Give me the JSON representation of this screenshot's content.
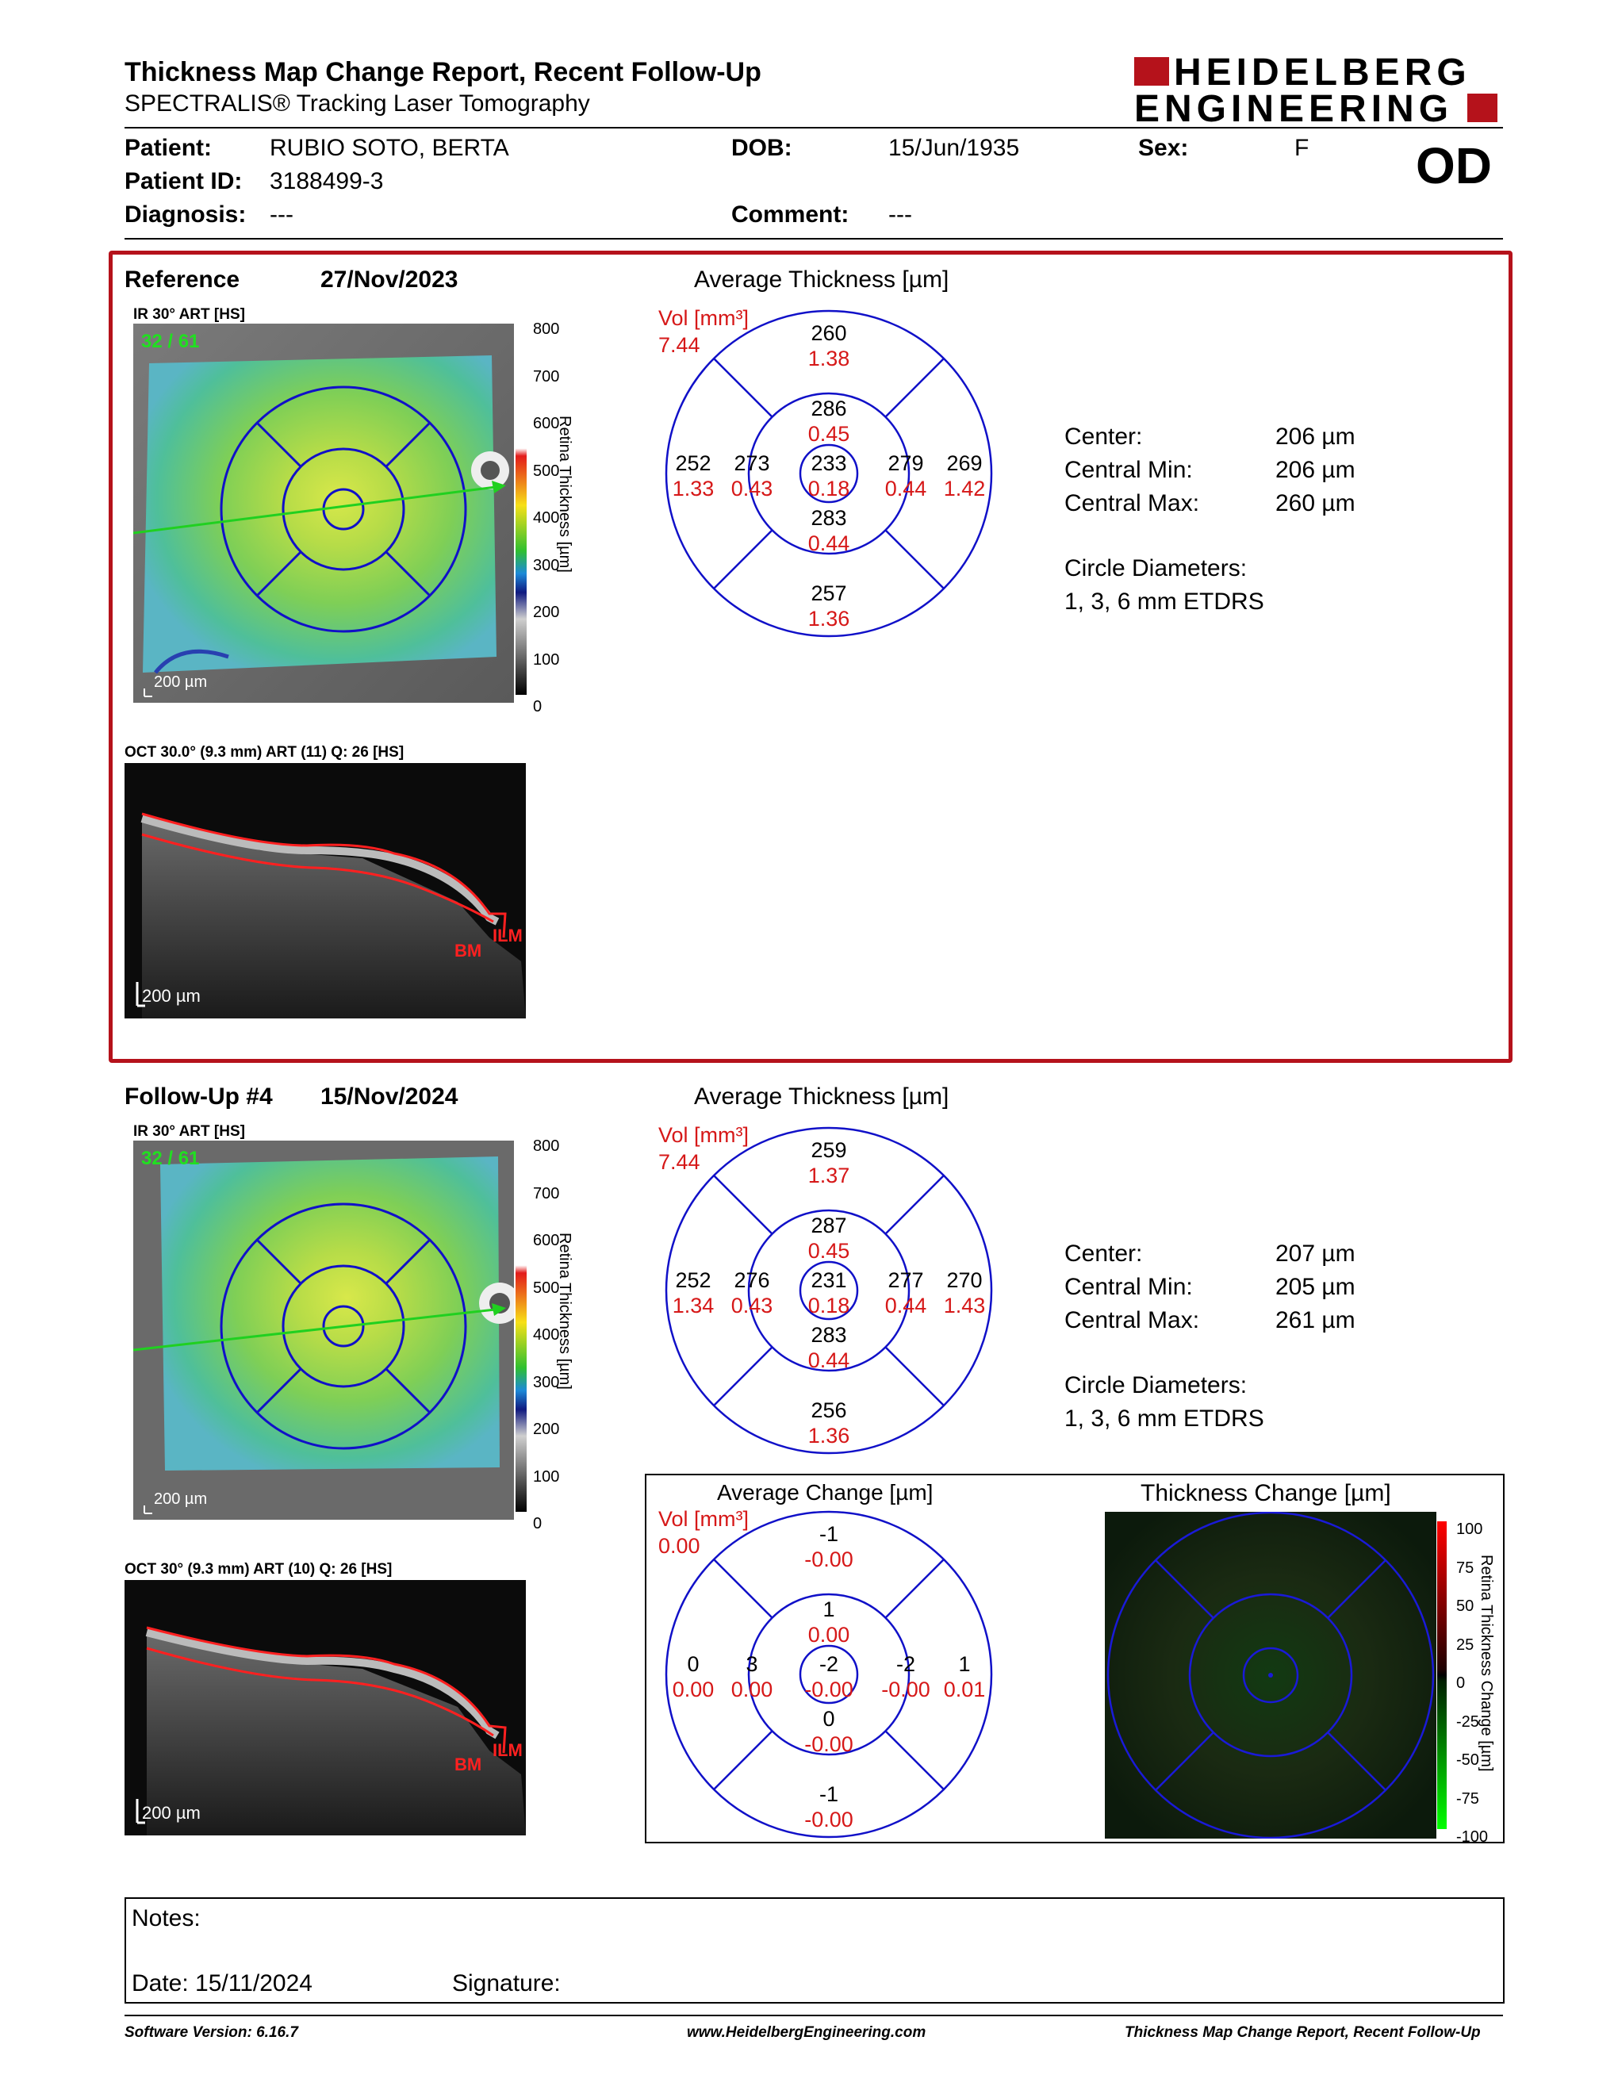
{
  "header": {
    "title": "Thickness Map Change Report, Recent Follow-Up",
    "subtitle": "SPECTRALIS® Tracking Laser Tomography",
    "logo_line1": "HEIDELBERG",
    "logo_line2": "ENGINEERING"
  },
  "patient": {
    "patient_label": "Patient:",
    "patient_value": "RUBIO SOTO, BERTA",
    "id_label": "Patient ID:",
    "id_value": "3188499-3",
    "diagnosis_label": "Diagnosis:",
    "diagnosis_value": "---",
    "dob_label": "DOB:",
    "dob_value": "15/Jun/1935",
    "comment_label": "Comment:",
    "comment_value": "---",
    "sex_label": "Sex:",
    "sex_value": "F",
    "eye": "OD"
  },
  "reference": {
    "label": "Reference",
    "date": "27/Nov/2023",
    "slo_caption": "IR 30° ART [HS]",
    "frame_count": "32 / 61",
    "scale_label": "200 µm",
    "colorbar_ticks": [
      "800",
      "700",
      "600",
      "500",
      "400",
      "300",
      "200",
      "100",
      "0"
    ],
    "colorbar_title": "Retina Thickness [µm]",
    "oct_caption": "OCT 30.0° (9.3 mm) ART (11) Q: 26 [HS]",
    "oct_scale": "200 µm",
    "ilm": "ILM",
    "bm": "BM",
    "avg_title": "Average Thickness [µm]",
    "vol_label": "Vol [mm³]",
    "vol_total": "7.44",
    "etdrs": {
      "center": [
        "233",
        "0.18"
      ],
      "inner_sup": [
        "286",
        "0.45"
      ],
      "inner_inf": [
        "283",
        "0.44"
      ],
      "inner_temp": [
        "273",
        "0.43"
      ],
      "inner_nas": [
        "279",
        "0.44"
      ],
      "outer_sup": [
        "260",
        "1.38"
      ],
      "outer_inf": [
        "257",
        "1.36"
      ],
      "outer_temp": [
        "252",
        "1.33"
      ],
      "outer_nas": [
        "269",
        "1.42"
      ]
    },
    "stats": {
      "center_label": "Center:",
      "center_value": "206 µm",
      "min_label": "Central Min:",
      "min_value": "206 µm",
      "max_label": "Central Max:",
      "max_value": "260 µm",
      "diam_label": "Circle Diameters:",
      "diam_value": "1, 3, 6 mm ETDRS"
    }
  },
  "followup": {
    "label": "Follow-Up #4",
    "date": "15/Nov/2024",
    "slo_caption": "IR 30° ART [HS]",
    "frame_count": "32 / 61",
    "scale_label": "200 µm",
    "colorbar_ticks": [
      "800",
      "700",
      "600",
      "500",
      "400",
      "300",
      "200",
      "100",
      "0"
    ],
    "colorbar_title": "Retina Thickness [µm]",
    "oct_caption": "OCT 30° (9.3 mm) ART (10) Q: 26 [HS]",
    "oct_scale": "200 µm",
    "ilm": "ILM",
    "bm": "BM",
    "avg_title": "Average Thickness [µm]",
    "vol_label": "Vol [mm³]",
    "vol_total": "7.44",
    "etdrs": {
      "center": [
        "231",
        "0.18"
      ],
      "inner_sup": [
        "287",
        "0.45"
      ],
      "inner_inf": [
        "283",
        "0.44"
      ],
      "inner_temp": [
        "276",
        "0.43"
      ],
      "inner_nas": [
        "277",
        "0.44"
      ],
      "outer_sup": [
        "259",
        "1.37"
      ],
      "outer_inf": [
        "256",
        "1.36"
      ],
      "outer_temp": [
        "252",
        "1.34"
      ],
      "outer_nas": [
        "270",
        "1.43"
      ]
    },
    "stats": {
      "center_label": "Center:",
      "center_value": "207 µm",
      "min_label": "Central Min:",
      "min_value": "205 µm",
      "max_label": "Central Max:",
      "max_value": "261 µm",
      "diam_label": "Circle Diameters:",
      "diam_value": "1, 3, 6 mm ETDRS"
    }
  },
  "change": {
    "avg_title": "Average Change [µm]",
    "vol_label": "Vol [mm³]",
    "vol_total": "0.00",
    "etdrs": {
      "center": [
        "-2",
        "-0.00"
      ],
      "inner_sup": [
        "1",
        "0.00"
      ],
      "inner_inf": [
        "0",
        "-0.00"
      ],
      "inner_temp": [
        "3",
        "0.00"
      ],
      "inner_nas": [
        "-2",
        "-0.00"
      ],
      "outer_sup": [
        "-1",
        "-0.00"
      ],
      "outer_inf": [
        "-1",
        "-0.00"
      ],
      "outer_temp": [
        "0",
        "0.00"
      ],
      "outer_nas": [
        "1",
        "0.01"
      ]
    },
    "map_title": "Thickness Change [µm]",
    "colorbar_ticks": [
      "100",
      "75",
      "50",
      "25",
      "0",
      "-25",
      "-50",
      "-75",
      "-100"
    ],
    "colorbar_title": "Retina Thickness Change [µm]"
  },
  "notes": {
    "notes_label": "Notes:",
    "date_label": "Date: 15/11/2024",
    "signature_label": "Signature:"
  },
  "footer": {
    "software": "Software Version: 6.16.7",
    "website": "www.HeidelbergEngineering.com",
    "report": "Thickness Map Change Report, Recent Follow-Up"
  },
  "colors": {
    "brand_red": "#b5121b",
    "grid_blue": "#1010c8",
    "value_red": "#d61818"
  }
}
